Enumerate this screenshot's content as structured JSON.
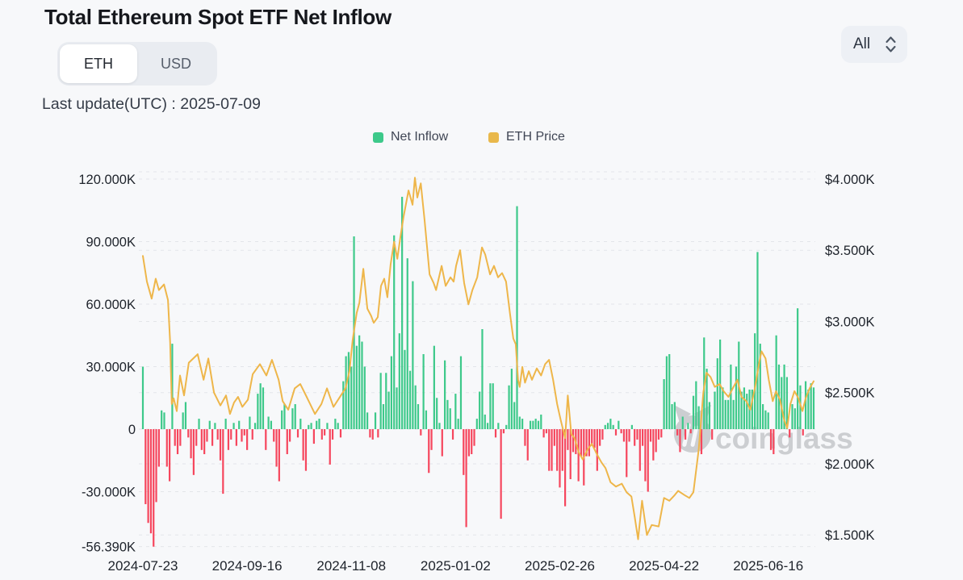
{
  "header": {
    "title": "Total Ethereum Spot ETF Net Inflow",
    "toggle": {
      "options": [
        "ETH",
        "USD"
      ],
      "active": "ETH"
    },
    "last_update": "Last update(UTC) : 2025-07-09",
    "range_select": {
      "value": "All"
    }
  },
  "watermark": "coinglass",
  "chart_data": {
    "type": "bar+line",
    "title": "Total Ethereum Spot ETF Net Inflow",
    "legend": [
      {
        "label": "Net Inflow",
        "color": "#3dc98a"
      },
      {
        "label": "ETH Price",
        "color": "#e9b84b"
      }
    ],
    "colors": {
      "positive": "#3dc98a",
      "negative": "#f6465d",
      "price_line": "#eeb64a",
      "grid": "#e3e5e9",
      "axis_text": "#1e232b",
      "watermark": "#c2c4c8"
    },
    "left_axis": {
      "unit": "K ETH",
      "ticks": [
        {
          "label": "120.000K",
          "v": 120
        },
        {
          "label": "90.000K",
          "v": 90
        },
        {
          "label": "60.000K",
          "v": 60
        },
        {
          "label": "30.000K",
          "v": 30
        },
        {
          "label": "0",
          "v": 0
        },
        {
          "label": "-30.000K",
          "v": -30
        },
        {
          "label": "-56.390K",
          "v": -56.39
        }
      ]
    },
    "right_axis": {
      "unit": "USD",
      "ticks": [
        {
          "label": "$4.000K",
          "p": 4.0
        },
        {
          "label": "$3.500K",
          "p": 3.5
        },
        {
          "label": "$3.000K",
          "p": 3.0
        },
        {
          "label": "$2.500K",
          "p": 2.5
        },
        {
          "label": "$2.000K",
          "p": 2.0
        },
        {
          "label": "$1.500K",
          "p": 1.5
        }
      ]
    },
    "x_ticks": [
      {
        "label": "2024-07-23",
        "i": 0
      },
      {
        "label": "2024-09-16",
        "i": 39
      },
      {
        "label": "2024-11-08",
        "i": 78
      },
      {
        "label": "2025-01-02",
        "i": 117
      },
      {
        "label": "2025-02-26",
        "i": 156
      },
      {
        "label": "2025-04-22",
        "i": 195
      },
      {
        "label": "2025-06-16",
        "i": 234
      }
    ],
    "net_inflow_k": [
      30,
      -36,
      -45,
      -50,
      -56.39,
      -35,
      -18,
      9,
      8,
      -18,
      -25,
      41,
      -8,
      -12,
      -8,
      8,
      13,
      -4,
      -14,
      -22,
      -8,
      5,
      -10,
      -12,
      -6,
      4,
      -8,
      3,
      -5,
      -15,
      -31,
      5,
      -10,
      -5,
      3,
      -8,
      4,
      -6,
      -3,
      -10,
      6,
      -5,
      3,
      17,
      22,
      20,
      -10,
      6,
      4,
      -6,
      -18,
      -25,
      9,
      12,
      -12,
      -6,
      10,
      12,
      -4,
      5,
      -15,
      -20,
      2,
      3,
      -7,
      4,
      5,
      -5,
      -3,
      3,
      -17,
      -5,
      5,
      3,
      -4,
      23,
      35,
      37,
      30,
      92.5,
      40,
      45,
      42,
      30,
      8,
      -4,
      -5,
      8,
      -4,
      27,
      12,
      27,
      18,
      35,
      93,
      20,
      46,
      111.5,
      38,
      82,
      28,
      71,
      21,
      12,
      -3,
      36,
      9,
      -21,
      -10,
      40,
      15,
      3,
      -13,
      33,
      14,
      10,
      -5,
      17,
      5,
      35,
      -22,
      -47,
      -13,
      -12,
      -8,
      5,
      18,
      48,
      7,
      3,
      22,
      22,
      -4,
      3,
      -43,
      -2,
      2,
      21,
      29,
      13,
      107,
      6,
      5,
      -8,
      -15,
      4,
      4,
      5,
      4,
      7,
      -4,
      -2,
      -20,
      -20,
      -8,
      -20,
      -28,
      -20,
      -37,
      -10,
      -24,
      -11,
      -12,
      -25,
      -13,
      -27,
      -13,
      -13,
      -8,
      -9,
      -20,
      -8,
      -5,
      2,
      3,
      5,
      2,
      -3,
      4,
      -2,
      -6,
      -23,
      -6,
      2,
      -8,
      -5,
      -20,
      -8,
      -25,
      -30,
      -6,
      -15,
      -11,
      -5,
      -4,
      24,
      35,
      36,
      12,
      13,
      -3,
      -11,
      6,
      -5,
      3,
      -2,
      16,
      23,
      11,
      -12,
      44,
      29,
      13,
      -5,
      18,
      34,
      43,
      20,
      14,
      14,
      31,
      14,
      30,
      42,
      18,
      20,
      17,
      19,
      19,
      46,
      85,
      41,
      12,
      9,
      8,
      -10,
      -12,
      45,
      31,
      25,
      31,
      25,
      -4,
      12,
      10,
      58,
      21,
      -3,
      23,
      19,
      22,
      20
    ],
    "eth_price_points": [
      [
        0,
        3.46
      ],
      [
        1.5,
        3.28
      ],
      [
        3.3,
        3.16
      ],
      [
        4.8,
        3.3
      ],
      [
        6,
        3.22
      ],
      [
        7.9,
        3.26
      ],
      [
        9.4,
        3.15
      ],
      [
        10.2,
        2.85
      ],
      [
        10.8,
        2.42
      ],
      [
        11.5,
        2.46
      ],
      [
        12.7,
        2.37
      ],
      [
        13.9,
        2.62
      ],
      [
        15.4,
        2.48
      ],
      [
        17.2,
        2.71
      ],
      [
        20.5,
        2.77
      ],
      [
        22.7,
        2.59
      ],
      [
        24.5,
        2.74
      ],
      [
        26.6,
        2.5
      ],
      [
        29,
        2.41
      ],
      [
        31.1,
        2.48
      ],
      [
        32.6,
        2.35
      ],
      [
        34.1,
        2.43
      ],
      [
        35.6,
        2.47
      ],
      [
        37.2,
        2.4
      ],
      [
        39.3,
        2.45
      ],
      [
        41.1,
        2.63
      ],
      [
        43.8,
        2.7
      ],
      [
        46.2,
        2.62
      ],
      [
        48.3,
        2.73
      ],
      [
        50.8,
        2.59
      ],
      [
        52.3,
        2.44
      ],
      [
        54.4,
        2.38
      ],
      [
        56.8,
        2.53
      ],
      [
        58.9,
        2.56
      ],
      [
        61.3,
        2.47
      ],
      [
        64.4,
        2.35
      ],
      [
        66.8,
        2.42
      ],
      [
        68.9,
        2.53
      ],
      [
        71.3,
        2.4
      ],
      [
        75.8,
        2.53
      ],
      [
        77.3,
        2.65
      ],
      [
        78.5,
        2.87
      ],
      [
        80,
        3.06
      ],
      [
        81,
        3.13
      ],
      [
        82.5,
        3.37
      ],
      [
        84,
        3.09
      ],
      [
        85.4,
        3.04
      ],
      [
        86.4,
        2.99
      ],
      [
        87.9,
        3.03
      ],
      [
        89.1,
        3.25
      ],
      [
        90.3,
        3.3
      ],
      [
        91.5,
        3.17
      ],
      [
        92.7,
        3.4
      ],
      [
        94,
        3.56
      ],
      [
        95.2,
        3.44
      ],
      [
        96.4,
        3.6
      ],
      [
        97.6,
        3.74
      ],
      [
        99.4,
        3.92
      ],
      [
        100.9,
        3.82
      ],
      [
        101.8,
        4.01
      ],
      [
        102.7,
        3.87
      ],
      [
        104,
        3.97
      ],
      [
        105.4,
        3.71
      ],
      [
        107.3,
        3.33
      ],
      [
        108.8,
        3.27
      ],
      [
        109.7,
        3.22
      ],
      [
        111.8,
        3.39
      ],
      [
        113.3,
        3.25
      ],
      [
        115.1,
        3.31
      ],
      [
        116.3,
        3.28
      ],
      [
        117.2,
        3.39
      ],
      [
        118.7,
        3.5
      ],
      [
        120.2,
        3.27
      ],
      [
        121.8,
        3.12
      ],
      [
        123.3,
        3.22
      ],
      [
        125.1,
        3.31
      ],
      [
        126.9,
        3.52
      ],
      [
        128.1,
        3.47
      ],
      [
        129.9,
        3.33
      ],
      [
        131.4,
        3.39
      ],
      [
        132.9,
        3.31
      ],
      [
        134.4,
        3.34
      ],
      [
        135.9,
        3.28
      ],
      [
        137.4,
        3.05
      ],
      [
        138.6,
        2.88
      ],
      [
        139.5,
        2.84
      ],
      [
        140.4,
        2.59
      ],
      [
        141,
        2.54
      ],
      [
        142,
        2.68
      ],
      [
        143,
        2.57
      ],
      [
        144.4,
        2.65
      ],
      [
        145.6,
        2.59
      ],
      [
        147.4,
        2.67
      ],
      [
        149,
        2.62
      ],
      [
        150.5,
        2.7
      ],
      [
        152,
        2.73
      ],
      [
        153.5,
        2.59
      ],
      [
        155,
        2.42
      ],
      [
        156.3,
        2.31
      ],
      [
        158,
        2.18
      ],
      [
        159,
        2.48
      ],
      [
        160.3,
        2.21
      ],
      [
        161.5,
        2.18
      ],
      [
        163.1,
        2.08
      ],
      [
        164.6,
        2.03
      ],
      [
        166.4,
        2.1
      ],
      [
        168,
        2.14
      ],
      [
        169.8,
        2.07
      ],
      [
        171.6,
        2.01
      ],
      [
        173.1,
        1.97
      ],
      [
        175,
        1.87
      ],
      [
        177,
        1.84
      ],
      [
        179.2,
        1.86
      ],
      [
        181,
        1.8
      ],
      [
        182.8,
        1.77
      ],
      [
        184,
        1.63
      ],
      [
        185.3,
        1.47
      ],
      [
        186.8,
        1.74
      ],
      [
        188.6,
        1.5
      ],
      [
        190.4,
        1.57
      ],
      [
        193,
        1.56
      ],
      [
        195,
        1.76
      ],
      [
        197,
        1.74
      ],
      [
        199,
        1.78
      ],
      [
        200.3,
        1.81
      ],
      [
        202.7,
        1.78
      ],
      [
        204.5,
        1.76
      ],
      [
        206,
        1.8
      ],
      [
        208,
        2.1
      ],
      [
        209.7,
        2.5
      ],
      [
        210.9,
        2.64
      ],
      [
        212.4,
        2.61
      ],
      [
        214,
        2.54
      ],
      [
        215.8,
        2.56
      ],
      [
        217.3,
        2.51
      ],
      [
        219.1,
        2.47
      ],
      [
        221,
        2.54
      ],
      [
        222.5,
        2.59
      ],
      [
        224,
        2.47
      ],
      [
        225.8,
        2.44
      ],
      [
        227.3,
        2.38
      ],
      [
        229.1,
        2.54
      ],
      [
        230.6,
        2.71
      ],
      [
        231.5,
        2.79
      ],
      [
        233,
        2.74
      ],
      [
        234.2,
        2.59
      ],
      [
        235.7,
        2.44
      ],
      [
        236.9,
        2.51
      ],
      [
        238.4,
        2.45
      ],
      [
        239.9,
        2.31
      ],
      [
        241.1,
        2.25
      ],
      [
        242.3,
        2.42
      ],
      [
        243.8,
        2.51
      ],
      [
        245.3,
        2.46
      ],
      [
        246.8,
        2.37
      ],
      [
        248,
        2.46
      ],
      [
        249.5,
        2.53
      ],
      [
        250.4,
        2.56
      ],
      [
        251,
        2.58
      ]
    ]
  }
}
